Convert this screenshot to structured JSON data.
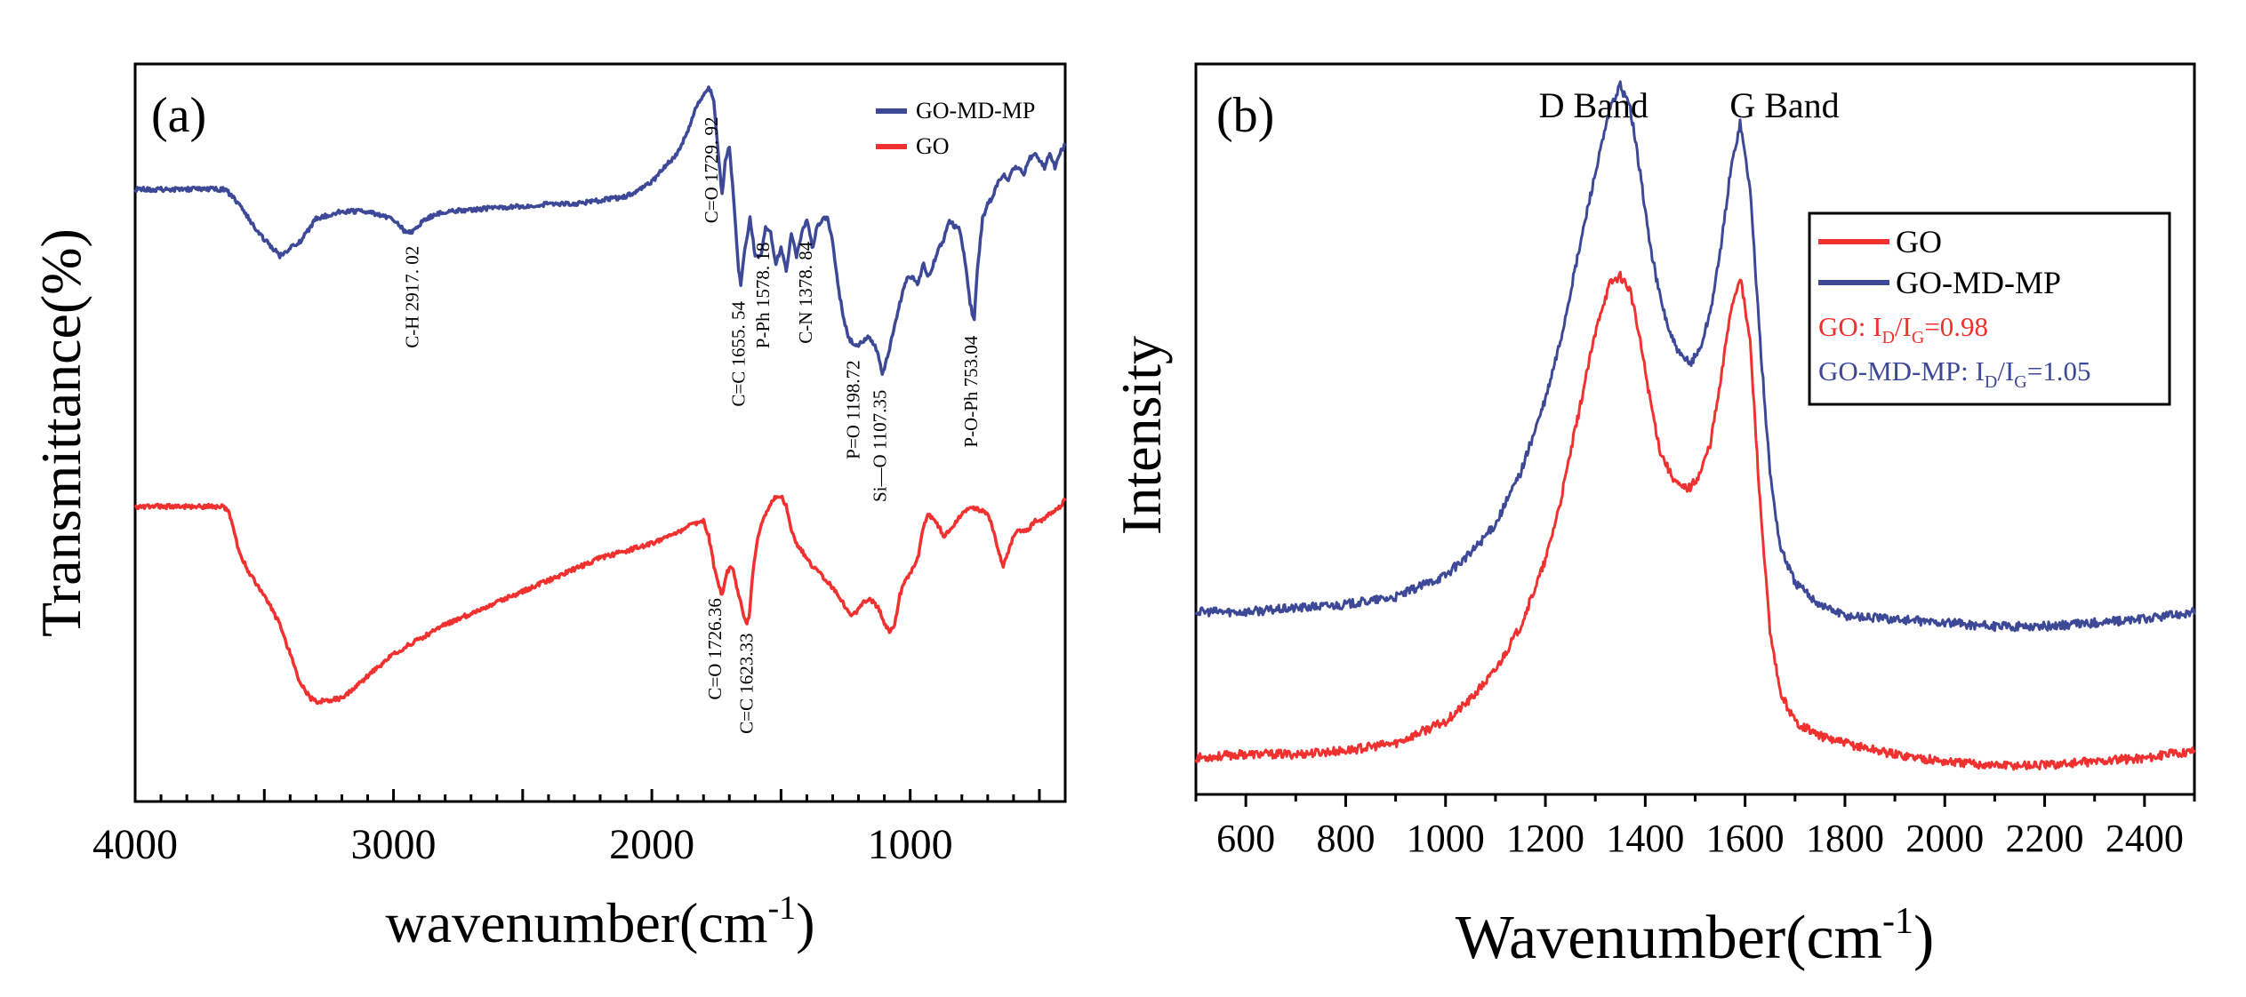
{
  "chart_data": [
    {
      "panel": "(a)",
      "type": "line",
      "title": "",
      "xlabel": "wavenumber(cm",
      "xlabel_sup": "-1",
      "xlabel_end": ")",
      "ylabel": "Transmittance(%)",
      "xlim": [
        4000,
        400
      ],
      "ylim": [
        0,
        100
      ],
      "xticks": [
        4000,
        3000,
        2000,
        1000
      ],
      "yticks_shown": false,
      "grid": false,
      "legend": {
        "position": "top-right",
        "entries": [
          "GO-MD-MP",
          "GO"
        ]
      },
      "series": [
        {
          "name": "GO-MD-MP",
          "color": "#3d4897",
          "x": [
            4000,
            3800,
            3650,
            3600,
            3520,
            3440,
            3360,
            3300,
            3200,
            3100,
            3000,
            2950,
            2917,
            2880,
            2800,
            2600,
            2400,
            2300,
            2200,
            2100,
            2000,
            1950,
            1900,
            1860,
            1830,
            1800,
            1780,
            1760,
            1745,
            1729,
            1715,
            1700,
            1680,
            1665,
            1655,
            1640,
            1620,
            1600,
            1578,
            1560,
            1540,
            1520,
            1500,
            1480,
            1460,
            1440,
            1420,
            1400,
            1378,
            1360,
            1340,
            1320,
            1300,
            1280,
            1260,
            1240,
            1220,
            1198,
            1180,
            1160,
            1140,
            1120,
            1107,
            1090,
            1070,
            1050,
            1030,
            1010,
            990,
            970,
            950,
            930,
            910,
            890,
            870,
            850,
            830,
            810,
            790,
            770,
            753,
            740,
            720,
            700,
            680,
            660,
            640,
            620,
            600,
            580,
            560,
            540,
            520,
            500,
            480,
            460,
            440,
            420,
            400
          ],
          "y": [
            83,
            83,
            83,
            81,
            77,
            74,
            76,
            79,
            80,
            80,
            79,
            77,
            77.5,
            79,
            80,
            80.5,
            81,
            81,
            81.5,
            82,
            84,
            86,
            88,
            91,
            94,
            96,
            97,
            95,
            89,
            82,
            87,
            89,
            80,
            72,
            70,
            75,
            79,
            74,
            74,
            78,
            77,
            73,
            75,
            72,
            77,
            74,
            77,
            79,
            75,
            78,
            79,
            79,
            76,
            70,
            66,
            63,
            62,
            62,
            62.5,
            63,
            62,
            60,
            58,
            60,
            63,
            66,
            69,
            71,
            71,
            70,
            73,
            71,
            73,
            75,
            76,
            79,
            78,
            78,
            74,
            68,
            65,
            72,
            79,
            81,
            82,
            84,
            85,
            84,
            86,
            86,
            85,
            87,
            88,
            87,
            86,
            88,
            86,
            88,
            89
          ]
        },
        {
          "name": "GO",
          "color": "#f0312f",
          "x": [
            4000,
            3800,
            3700,
            3660,
            3640,
            3620,
            3600,
            3560,
            3500,
            3440,
            3400,
            3360,
            3320,
            3300,
            3200,
            3100,
            3000,
            2900,
            2800,
            2600,
            2400,
            2200,
            2100,
            2000,
            1900,
            1850,
            1800,
            1780,
            1760,
            1740,
            1726,
            1710,
            1690,
            1670,
            1650,
            1635,
            1623,
            1610,
            1590,
            1560,
            1530,
            1500,
            1480,
            1460,
            1440,
            1420,
            1400,
            1380,
            1350,
            1300,
            1260,
            1230,
            1200,
            1180,
            1160,
            1140,
            1120,
            1100,
            1080,
            1060,
            1050,
            1040,
            1020,
            1000,
            970,
            950,
            930,
            900,
            870,
            840,
            800,
            760,
            730,
            700,
            680,
            660,
            640,
            620,
            600,
            580,
            560,
            540,
            520,
            500,
            480,
            460,
            440,
            420,
            400
          ],
          "y": [
            40,
            40,
            40,
            40,
            39.5,
            37,
            34,
            31,
            28,
            24,
            20,
            16,
            14,
            13.5,
            14,
            17,
            20,
            22,
            24,
            27,
            30,
            33,
            34,
            35,
            36.5,
            37.5,
            38,
            36,
            32,
            29,
            28,
            31,
            32,
            29,
            26,
            24,
            25,
            31,
            36,
            39,
            41,
            41.5,
            40,
            37,
            35,
            34,
            33,
            32,
            31,
            29,
            27,
            25,
            26,
            27,
            27.5,
            27,
            26,
            24,
            23,
            24,
            26,
            28,
            30,
            31,
            33,
            37,
            39,
            38,
            36,
            37,
            39,
            40,
            39.5,
            39,
            37,
            34,
            32,
            34,
            36,
            37,
            36.5,
            37,
            38,
            38,
            38.5,
            39,
            39.5,
            40,
            41
          ]
        }
      ],
      "annotations": [
        {
          "text": "C-H  2917. 02",
          "series": "GO-MD-MP",
          "x": 2917
        },
        {
          "text": "C=O  1729. 92",
          "series": "GO-MD-MP",
          "x": 1760
        },
        {
          "text": "C=C  1655. 54",
          "series": "GO-MD-MP",
          "x": 1655
        },
        {
          "text": "P-Ph  1578. 18",
          "series": "GO-MD-MP",
          "x": 1560
        },
        {
          "text": "C-N  1378. 84",
          "series": "GO-MD-MP",
          "x": 1395
        },
        {
          "text": "P=O  1198.72",
          "series": "GO-MD-MP",
          "x": 1210
        },
        {
          "text": "Si—O 1107.35",
          "series": "GO-MD-MP",
          "x": 1107
        },
        {
          "text": "P-O-Ph 753.04",
          "series": "GO-MD-MP",
          "x": 755
        },
        {
          "text": "C=O  1726.36",
          "series": "GO",
          "x": 1745
        },
        {
          "text": "C=C  1623.33",
          "series": "GO",
          "x": 1623
        }
      ]
    },
    {
      "panel": "(b)",
      "type": "line",
      "title": "",
      "xlabel": "Wavenumber(cm",
      "xlabel_sup": "-1",
      "xlabel_end": ")",
      "ylabel": "Intensity",
      "xlim": [
        500,
        2500
      ],
      "ylim": [
        0,
        100
      ],
      "xticks": [
        600,
        800,
        1000,
        1200,
        1400,
        1600,
        1800,
        2000,
        2200,
        2400
      ],
      "yticks_shown": false,
      "grid": false,
      "legend": {
        "position": "upper-right",
        "entries": [
          "GO",
          "GO-MD-MP"
        ]
      },
      "ratio_labels": [
        {
          "series": "GO",
          "prefix": "GO: I",
          "sub1": "D",
          "mid": "/I",
          "sub2": "G",
          "suffix": "=0.98"
        },
        {
          "series": "GO-MD-MP",
          "prefix": "GO-MD-MP: I",
          "sub1": "D",
          "mid": "/I",
          "sub2": "G",
          "suffix": "=1.05"
        }
      ],
      "peak_labels": [
        {
          "text": "D Band",
          "x": 1350
        },
        {
          "text": "G Band",
          "x": 1590
        }
      ],
      "series": [
        {
          "name": "GO",
          "color": "#f0312f",
          "x": [
            500,
            600,
            700,
            800,
            900,
            1000,
            1050,
            1100,
            1150,
            1200,
            1230,
            1260,
            1290,
            1310,
            1330,
            1350,
            1370,
            1390,
            1410,
            1430,
            1450,
            1470,
            1490,
            1510,
            1530,
            1550,
            1570,
            1590,
            1610,
            1630,
            1650,
            1670,
            1700,
            1750,
            1800,
            1900,
            2000,
            2100,
            2200,
            2300,
            2400,
            2500
          ],
          "y": [
            5,
            5.5,
            5.5,
            6,
            7,
            10,
            13,
            17,
            23,
            32,
            40,
            50,
            60,
            66,
            70,
            71,
            69,
            62,
            54,
            47,
            44,
            42,
            42,
            44,
            48,
            56,
            66,
            71,
            62,
            40,
            22,
            14,
            10,
            8,
            7,
            5.5,
            4.5,
            4,
            4,
            4.5,
            5,
            6
          ]
        },
        {
          "name": "GO-MD-MP",
          "color": "#3d4897",
          "x": [
            500,
            600,
            700,
            800,
            900,
            1000,
            1050,
            1100,
            1150,
            1200,
            1230,
            1260,
            1290,
            1310,
            1330,
            1350,
            1370,
            1390,
            1410,
            1430,
            1450,
            1470,
            1490,
            1510,
            1530,
            1550,
            1570,
            1590,
            1610,
            1630,
            1650,
            1670,
            1700,
            1750,
            1800,
            1900,
            2000,
            2100,
            2200,
            2300,
            2400,
            2500
          ],
          "y": [
            25,
            25,
            25.5,
            26,
            27,
            30,
            33,
            37,
            44,
            54,
            62,
            72,
            82,
            88,
            94,
            97,
            94,
            85,
            75,
            68,
            63,
            60,
            59,
            61,
            66,
            74,
            85,
            92,
            83,
            62,
            44,
            34,
            29,
            26,
            24.5,
            24,
            23.5,
            23,
            23,
            23.5,
            24,
            25
          ]
        }
      ]
    }
  ]
}
